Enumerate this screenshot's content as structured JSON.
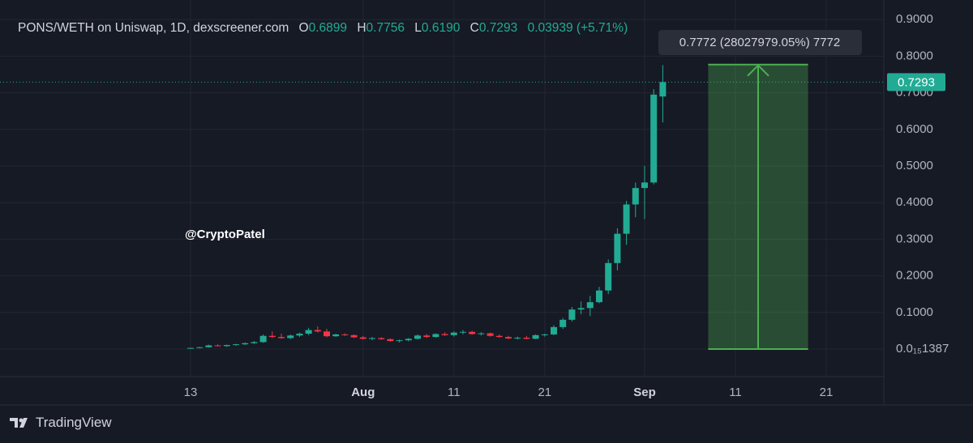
{
  "chart_data": {
    "type": "candlestick",
    "title": "PONS/WETH on Uniswap, 1D, dexscreener.com",
    "ohlc_keys": [
      "O",
      "H",
      "L",
      "C"
    ],
    "last_value_labels": [
      "0.6899",
      "0.7756",
      "0.6190",
      "0.7293"
    ],
    "change": 0.03939,
    "change_label": "(+5.71%)",
    "watermark": "@CryptoPatel",
    "brand": "TradingView",
    "up_color": "#22ab94",
    "down_color": "#f23645",
    "x": [
      "07-13",
      "07-14",
      "07-15",
      "07-16",
      "07-17",
      "07-18",
      "07-19",
      "07-20",
      "07-21",
      "07-22",
      "07-23",
      "07-24",
      "07-25",
      "07-26",
      "07-27",
      "07-28",
      "07-29",
      "07-30",
      "07-31",
      "08-01",
      "08-02",
      "08-03",
      "08-04",
      "08-05",
      "08-06",
      "08-07",
      "08-08",
      "08-09",
      "08-10",
      "08-11",
      "08-12",
      "08-13",
      "08-14",
      "08-15",
      "08-16",
      "08-17",
      "08-18",
      "08-19",
      "08-20",
      "08-21",
      "08-22",
      "08-23",
      "08-24",
      "08-25",
      "08-26",
      "08-27",
      "08-28",
      "08-29",
      "08-30",
      "08-31",
      "09-01",
      "09-02",
      "09-03"
    ],
    "open": [
      0.002,
      0.003,
      0.005,
      0.01,
      0.008,
      0.011,
      0.013,
      0.016,
      0.019,
      0.036,
      0.033,
      0.03,
      0.037,
      0.042,
      0.052,
      0.048,
      0.035,
      0.04,
      0.038,
      0.032,
      0.028,
      0.03,
      0.027,
      0.022,
      0.024,
      0.028,
      0.037,
      0.033,
      0.041,
      0.038,
      0.045,
      0.047,
      0.041,
      0.043,
      0.036,
      0.033,
      0.029,
      0.031,
      0.028,
      0.038,
      0.04,
      0.06,
      0.08,
      0.108,
      0.112,
      0.128,
      0.16,
      0.235,
      0.315,
      0.395,
      0.44,
      0.455,
      0.6899
    ],
    "high": [
      0.004,
      0.006,
      0.012,
      0.013,
      0.012,
      0.014,
      0.018,
      0.022,
      0.04,
      0.048,
      0.042,
      0.04,
      0.045,
      0.058,
      0.062,
      0.055,
      0.042,
      0.043,
      0.04,
      0.036,
      0.033,
      0.032,
      0.029,
      0.026,
      0.03,
      0.04,
      0.041,
      0.043,
      0.046,
      0.048,
      0.052,
      0.05,
      0.046,
      0.045,
      0.04,
      0.036,
      0.034,
      0.036,
      0.04,
      0.042,
      0.065,
      0.085,
      0.115,
      0.13,
      0.145,
      0.17,
      0.245,
      0.33,
      0.405,
      0.455,
      0.5,
      0.71,
      0.7756
    ],
    "low": [
      0.001,
      0.002,
      0.004,
      0.007,
      0.006,
      0.009,
      0.011,
      0.014,
      0.017,
      0.03,
      0.028,
      0.027,
      0.033,
      0.038,
      0.045,
      0.032,
      0.033,
      0.036,
      0.03,
      0.026,
      0.024,
      0.025,
      0.02,
      0.018,
      0.021,
      0.026,
      0.03,
      0.031,
      0.036,
      0.034,
      0.04,
      0.039,
      0.037,
      0.034,
      0.031,
      0.027,
      0.026,
      0.027,
      0.027,
      0.034,
      0.038,
      0.055,
      0.075,
      0.095,
      0.09,
      0.125,
      0.15,
      0.215,
      0.285,
      0.36,
      0.355,
      0.45,
      0.619
    ],
    "close": [
      0.003,
      0.005,
      0.01,
      0.008,
      0.011,
      0.013,
      0.016,
      0.019,
      0.036,
      0.033,
      0.03,
      0.037,
      0.042,
      0.052,
      0.048,
      0.035,
      0.04,
      0.038,
      0.032,
      0.028,
      0.03,
      0.027,
      0.022,
      0.024,
      0.028,
      0.037,
      0.033,
      0.041,
      0.038,
      0.045,
      0.047,
      0.041,
      0.043,
      0.036,
      0.033,
      0.029,
      0.031,
      0.028,
      0.038,
      0.04,
      0.06,
      0.08,
      0.108,
      0.112,
      0.128,
      0.16,
      0.235,
      0.315,
      0.395,
      0.44,
      0.455,
      0.695,
      0.7293
    ],
    "xticks": [
      {
        "value": "07-13",
        "label": "13"
      },
      {
        "value": "08-01",
        "label": "Aug"
      },
      {
        "value": "08-11",
        "label": "11"
      },
      {
        "value": "08-21",
        "label": "21"
      },
      {
        "value": "09-01",
        "label": "Sep"
      },
      {
        "value": "09-11",
        "label": "11"
      },
      {
        "value": "09-21",
        "label": "21"
      }
    ],
    "ylim": [
      -0.0752,
      0.9535
    ],
    "yticks": [
      {
        "value": 1.387e-16,
        "label": "0.0₁₅1387"
      },
      {
        "value": 0.1,
        "label": "0.1000"
      },
      {
        "value": 0.2,
        "label": "0.2000"
      },
      {
        "value": 0.3,
        "label": "0.3000"
      },
      {
        "value": 0.4,
        "label": "0.4000"
      },
      {
        "value": 0.5,
        "label": "0.5000"
      },
      {
        "value": 0.6,
        "label": "0.6000"
      },
      {
        "value": 0.7,
        "label": "0.7000"
      },
      {
        "value": 0.8,
        "label": "0.8000"
      },
      {
        "value": 0.9,
        "label": "0.9000"
      }
    ],
    "grid": true,
    "measure": {
      "start": "09-08",
      "end": "09-19",
      "low": 1.387e-16,
      "high": 0.7772,
      "label": "0.7772 (28027979.05%) 7772",
      "color": "#4caf50"
    }
  }
}
